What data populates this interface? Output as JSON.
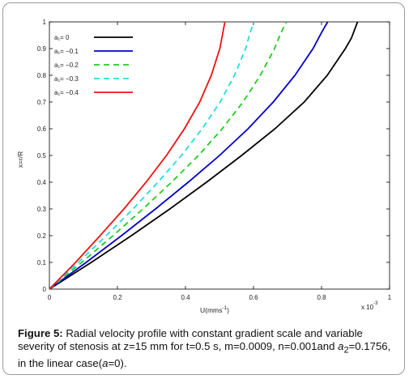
{
  "chart_data": {
    "type": "line",
    "xlabel": "U(mms",
    "xlabel_exp": "-1",
    "xlabel_close": ")",
    "ylabel": "x=r/R",
    "xlim": [
      0,
      0.001
    ],
    "ylim": [
      0,
      1
    ],
    "x_ticks": [
      0,
      0.0002,
      0.0004,
      0.0006,
      0.0008,
      0.001
    ],
    "x_tick_labels": [
      "0",
      "0.2",
      "0.4",
      "0.6",
      "0.8",
      "1"
    ],
    "x_scale_label": "x 10",
    "x_scale_exp": "-3",
    "y_ticks": [
      0,
      0.1,
      0.2,
      0.3,
      0.4,
      0.5,
      0.6,
      0.7,
      0.8,
      0.9,
      1
    ],
    "y_tick_labels": [
      "0",
      "0.1",
      "0.2",
      "0.3",
      "0.4",
      "0.5",
      "0.6",
      "0.7",
      "0.8",
      "0.9",
      "1"
    ],
    "legend_placement": "top-left",
    "series": [
      {
        "name": "a₁= 0",
        "color": "#000000",
        "dash": "solid",
        "points": [
          [
            0,
            0
          ],
          [
            0.000123,
            0.1
          ],
          [
            0.000241,
            0.2
          ],
          [
            0.000354,
            0.3
          ],
          [
            0.000462,
            0.4
          ],
          [
            0.000565,
            0.5
          ],
          [
            0.000663,
            0.6
          ],
          [
            0.000749,
            0.7
          ],
          [
            0.000817,
            0.8
          ],
          [
            0.00087,
            0.9
          ],
          [
            0.000888,
            0.94
          ],
          [
            0.000906,
            1.0
          ]
        ]
      },
      {
        "name": "a₁= −0.1",
        "color": "#0000cc",
        "dash": "solid",
        "points": [
          [
            0,
            0
          ],
          [
            0.000108,
            0.1
          ],
          [
            0.000212,
            0.2
          ],
          [
            0.000312,
            0.3
          ],
          [
            0.000408,
            0.4
          ],
          [
            0.0005,
            0.5
          ],
          [
            0.000584,
            0.6
          ],
          [
            0.000658,
            0.7
          ],
          [
            0.000722,
            0.8
          ],
          [
            0.000775,
            0.9
          ],
          [
            0.0008,
            0.96
          ],
          [
            0.000818,
            1.0
          ]
        ]
      },
      {
        "name": "a₁= −0.2",
        "color": "#22cc22",
        "dash": "dashed",
        "points": [
          [
            0,
            0
          ],
          [
            9.5e-05,
            0.1
          ],
          [
            0.000187,
            0.2
          ],
          [
            0.000275,
            0.3
          ],
          [
            0.000359,
            0.4
          ],
          [
            0.000438,
            0.5
          ],
          [
            0.000508,
            0.6
          ],
          [
            0.000569,
            0.7
          ],
          [
            0.00062,
            0.8
          ],
          [
            0.000662,
            0.9
          ],
          [
            0.000681,
            0.96
          ],
          [
            0.000697,
            1.0
          ]
        ]
      },
      {
        "name": "a₁= −0.3",
        "color": "#22dddd",
        "dash": "dashed",
        "points": [
          [
            0,
            0
          ],
          [
            8.5e-05,
            0.1
          ],
          [
            0.000167,
            0.2
          ],
          [
            0.000246,
            0.3
          ],
          [
            0.000319,
            0.4
          ],
          [
            0.000388,
            0.5
          ],
          [
            0.000449,
            0.6
          ],
          [
            0.000502,
            0.7
          ],
          [
            0.000544,
            0.8
          ],
          [
            0.000577,
            0.9
          ],
          [
            0.00059,
            0.96
          ],
          [
            0.000602,
            1.0
          ]
        ]
      },
      {
        "name": "a₁= −0.4",
        "color": "#ee1111",
        "dash": "solid",
        "points": [
          [
            0,
            0
          ],
          [
            7.7e-05,
            0.1
          ],
          [
            0.000149,
            0.2
          ],
          [
            0.000219,
            0.3
          ],
          [
            0.000284,
            0.4
          ],
          [
            0.000344,
            0.5
          ],
          [
            0.000397,
            0.6
          ],
          [
            0.000442,
            0.7
          ],
          [
            0.000476,
            0.8
          ],
          [
            0.000501,
            0.9
          ],
          [
            0.000516,
            1.0
          ]
        ]
      }
    ]
  },
  "caption": {
    "label": "Figure 5:",
    "text": "Radial velocity profile with constant gradient scale and variable severity of stenosis at z=15 mm for t=0.5 s, m=0.0009, n=0.001and ",
    "a2_symbol": "a",
    "a2_sub": "2",
    "text2": "=0.1756, in the linear case(",
    "alpha": "a",
    "text3": "=0)."
  }
}
